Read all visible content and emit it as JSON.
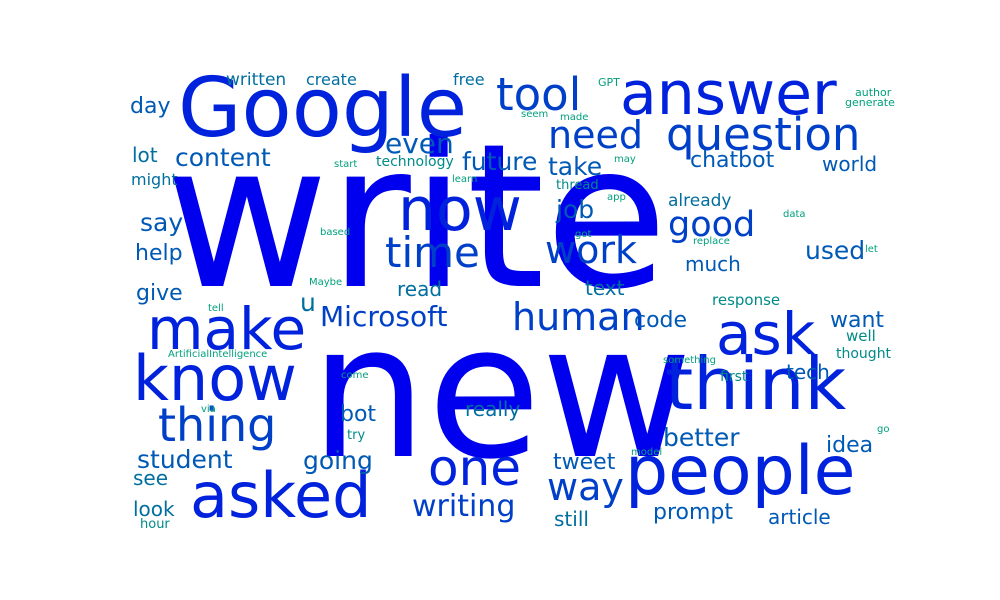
{
  "colors": {
    "background": "#ffffff",
    "tier_1": "#0000ee",
    "tier_2": "#0022dd",
    "tier_3": "#0040c8",
    "tier_4": "#0059b5",
    "tier_5": "#006e9e",
    "tier_6": "#008a88",
    "tier_7": "#00a07c"
  },
  "words": [
    {
      "text": "write",
      "tier": 1
    },
    {
      "text": "new",
      "tier": 1
    },
    {
      "text": "Google",
      "tier": 2
    },
    {
      "text": "answer",
      "tier": 2
    },
    {
      "text": "think",
      "tier": 2
    },
    {
      "text": "people",
      "tier": 2
    },
    {
      "text": "make",
      "tier": 2
    },
    {
      "text": "know",
      "tier": 2
    },
    {
      "text": "ask",
      "tier": 2
    },
    {
      "text": "asked",
      "tier": 2
    },
    {
      "text": "one",
      "tier": 2
    },
    {
      "text": "now",
      "tier": 2
    },
    {
      "text": "question",
      "tier": 3
    },
    {
      "text": "tool",
      "tier": 3
    },
    {
      "text": "need",
      "tier": 3
    },
    {
      "text": "thing",
      "tier": 3
    },
    {
      "text": "human",
      "tier": 3
    },
    {
      "text": "time",
      "tier": 3
    },
    {
      "text": "work",
      "tier": 3
    },
    {
      "text": "way",
      "tier": 3
    },
    {
      "text": "good",
      "tier": 3
    },
    {
      "text": "Microsoft",
      "tier": 3
    },
    {
      "text": "writing",
      "tier": 3
    },
    {
      "text": "student",
      "tier": 4
    },
    {
      "text": "better",
      "tier": 4
    },
    {
      "text": "used",
      "tier": 4
    },
    {
      "text": "want",
      "tier": 4
    },
    {
      "text": "take",
      "tier": 4
    },
    {
      "text": "content",
      "tier": 4
    },
    {
      "text": "job",
      "tier": 4
    },
    {
      "text": "even",
      "tier": 4
    },
    {
      "text": "say",
      "tier": 4
    },
    {
      "text": "code",
      "tier": 4
    },
    {
      "text": "going",
      "tier": 4
    },
    {
      "text": "chatbot",
      "tier": 4
    },
    {
      "text": "future",
      "tier": 4
    },
    {
      "text": "prompt",
      "tier": 4
    },
    {
      "text": "article",
      "tier": 4
    },
    {
      "text": "much",
      "tier": 4
    },
    {
      "text": "tech",
      "tier": 4
    },
    {
      "text": "give",
      "tier": 4
    },
    {
      "text": "help",
      "tier": 4
    },
    {
      "text": "day",
      "tier": 4
    },
    {
      "text": "world",
      "tier": 4
    },
    {
      "text": "bot",
      "tier": 4
    },
    {
      "text": "idea",
      "tier": 4
    },
    {
      "text": "tweet",
      "tier": 4
    },
    {
      "text": "text",
      "tier": 5
    },
    {
      "text": "read",
      "tier": 5
    },
    {
      "text": "really",
      "tier": 5
    },
    {
      "text": "see",
      "tier": 5
    },
    {
      "text": "look",
      "tier": 5
    },
    {
      "text": "still",
      "tier": 5
    },
    {
      "text": "lot",
      "tier": 5
    },
    {
      "text": "u",
      "tier": 5
    },
    {
      "text": "written",
      "tier": 5
    },
    {
      "text": "create",
      "tier": 5
    },
    {
      "text": "free",
      "tier": 5
    },
    {
      "text": "might",
      "tier": 5
    },
    {
      "text": "already",
      "tier": 5
    },
    {
      "text": "response",
      "tier": 6
    },
    {
      "text": "well",
      "tier": 6
    },
    {
      "text": "thought",
      "tier": 6
    },
    {
      "text": "first",
      "tier": 6
    },
    {
      "text": "technology",
      "tier": 6
    },
    {
      "text": "thread",
      "tier": 6
    },
    {
      "text": "try",
      "tier": 6
    },
    {
      "text": "hour",
      "tier": 6
    },
    {
      "text": "GPT",
      "tier": 7
    },
    {
      "text": "author",
      "tier": 7
    },
    {
      "text": "generate",
      "tier": 7
    },
    {
      "text": "seem",
      "tier": 7
    },
    {
      "text": "made",
      "tier": 7
    },
    {
      "text": "start",
      "tier": 7
    },
    {
      "text": "learn",
      "tier": 7
    },
    {
      "text": "may",
      "tier": 7
    },
    {
      "text": "app",
      "tier": 7
    },
    {
      "text": "got",
      "tier": 7
    },
    {
      "text": "based",
      "tier": 7
    },
    {
      "text": "let",
      "tier": 7
    },
    {
      "text": "data",
      "tier": 7
    },
    {
      "text": "replace",
      "tier": 7
    },
    {
      "text": "Maybe",
      "tier": 7
    },
    {
      "text": "tell",
      "tier": 7
    },
    {
      "text": "ArtificialIntelligence",
      "tier": 7
    },
    {
      "text": "something",
      "tier": 7
    },
    {
      "text": "come",
      "tier": 7
    },
    {
      "text": "via",
      "tier": 7
    },
    {
      "text": "go",
      "tier": 7
    },
    {
      "text": "model",
      "tier": 7
    }
  ]
}
